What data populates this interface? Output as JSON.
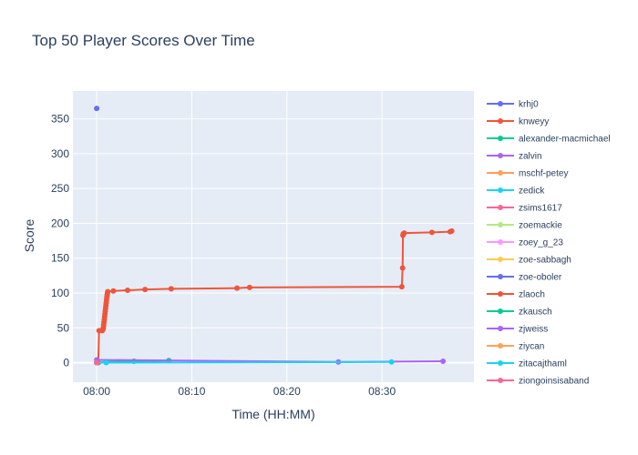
{
  "chart_data": {
    "type": "line",
    "title": "Top 50 Player Scores Over Time",
    "xlabel": "Time (HH:MM)",
    "ylabel": "Score",
    "x_ticks": [
      "08:00",
      "08:10",
      "08:20",
      "08:30"
    ],
    "y_ticks": [
      0,
      50,
      100,
      150,
      200,
      250,
      300,
      350
    ],
    "xlim": [
      "07:57:30",
      "08:39:40"
    ],
    "ylim": [
      -28,
      390
    ],
    "grid": true,
    "legend_placement": "right (scrollable, truncated)",
    "plot_bg": "#e5ecf6",
    "series": [
      {
        "name": "krhj0",
        "color": "#636efa",
        "points": [
          [
            "08:00:00",
            365
          ]
        ]
      },
      {
        "name": "knweyy",
        "color": "#EF553B",
        "points": [
          [
            "08:00:10",
            0
          ],
          [
            "08:00:15",
            46
          ],
          [
            "08:00:35",
            46
          ],
          [
            "08:00:40",
            48
          ],
          [
            "08:00:42",
            50
          ],
          [
            "08:00:44",
            54
          ],
          [
            "08:00:46",
            58
          ],
          [
            "08:00:48",
            62
          ],
          [
            "08:00:50",
            66
          ],
          [
            "08:00:52",
            70
          ],
          [
            "08:00:54",
            74
          ],
          [
            "08:00:56",
            78
          ],
          [
            "08:00:58",
            82
          ],
          [
            "08:01:00",
            86
          ],
          [
            "08:01:02",
            90
          ],
          [
            "08:01:04",
            94
          ],
          [
            "08:01:06",
            97
          ],
          [
            "08:01:08",
            100
          ],
          [
            "08:01:10",
            102
          ],
          [
            "08:01:45",
            103
          ],
          [
            "08:03:15",
            104
          ],
          [
            "08:05:05",
            105
          ],
          [
            "08:07:50",
            106
          ],
          [
            "08:14:45",
            107
          ],
          [
            "08:16:05",
            108
          ],
          [
            "08:32:05",
            109
          ],
          [
            "08:32:10",
            136
          ],
          [
            "08:32:12",
            183
          ],
          [
            "08:32:14",
            185
          ],
          [
            "08:32:20",
            186
          ],
          [
            "08:35:15",
            187
          ],
          [
            "08:37:10",
            188
          ],
          [
            "08:37:20",
            189
          ]
        ]
      },
      {
        "name": "alexander-macmichael",
        "color": "#00cc96",
        "points": [
          [
            "08:00:00",
            0
          ],
          [
            "08:01:00",
            1
          ],
          [
            "08:03:55",
            2
          ],
          [
            "08:07:35",
            3
          ]
        ]
      },
      {
        "name": "zalvin",
        "color": "#ab63fa",
        "points": [
          [
            "08:00:00",
            4
          ],
          [
            "08:25:25",
            1
          ],
          [
            "08:36:25",
            2
          ]
        ]
      },
      {
        "name": "mschf-petey",
        "color": "#FFA15A",
        "points": [
          [
            "08:00:00",
            0
          ]
        ]
      },
      {
        "name": "zedick",
        "color": "#19d3f3",
        "points": [
          [
            "08:00:00",
            0
          ],
          [
            "08:01:00",
            0
          ],
          [
            "08:31:00",
            1
          ]
        ]
      },
      {
        "name": "zsims1617",
        "color": "#FF6692",
        "points": [
          [
            "08:00:00",
            0
          ]
        ]
      },
      {
        "name": "zoemackie",
        "color": "#B6E880",
        "points": [
          [
            "08:00:00",
            0
          ]
        ]
      },
      {
        "name": "zoey_g_23",
        "color": "#FF97FF",
        "points": [
          [
            "08:00:00",
            0
          ]
        ]
      },
      {
        "name": "zoe-sabbagh",
        "color": "#FECB52",
        "points": [
          [
            "08:00:00",
            0
          ]
        ]
      },
      {
        "name": "zoe-oboler",
        "color": "#636efa",
        "points": [
          [
            "08:00:00",
            0
          ]
        ]
      },
      {
        "name": "zlaoch",
        "color": "#EF553B",
        "points": [
          [
            "08:00:00",
            0
          ]
        ]
      },
      {
        "name": "zkausch",
        "color": "#00cc96",
        "points": [
          [
            "08:00:00",
            0
          ]
        ]
      },
      {
        "name": "zjweiss",
        "color": "#ab63fa",
        "points": [
          [
            "08:00:00",
            0
          ]
        ]
      },
      {
        "name": "ziycan",
        "color": "#FFA15A",
        "points": [
          [
            "08:00:00",
            0
          ]
        ]
      },
      {
        "name": "zitacajthaml",
        "color": "#19d3f3",
        "points": [
          [
            "08:00:00",
            0
          ]
        ]
      },
      {
        "name": "ziongoinsisaband",
        "color": "#FF6692",
        "points": [
          [
            "08:00:00",
            0
          ]
        ]
      }
    ]
  }
}
